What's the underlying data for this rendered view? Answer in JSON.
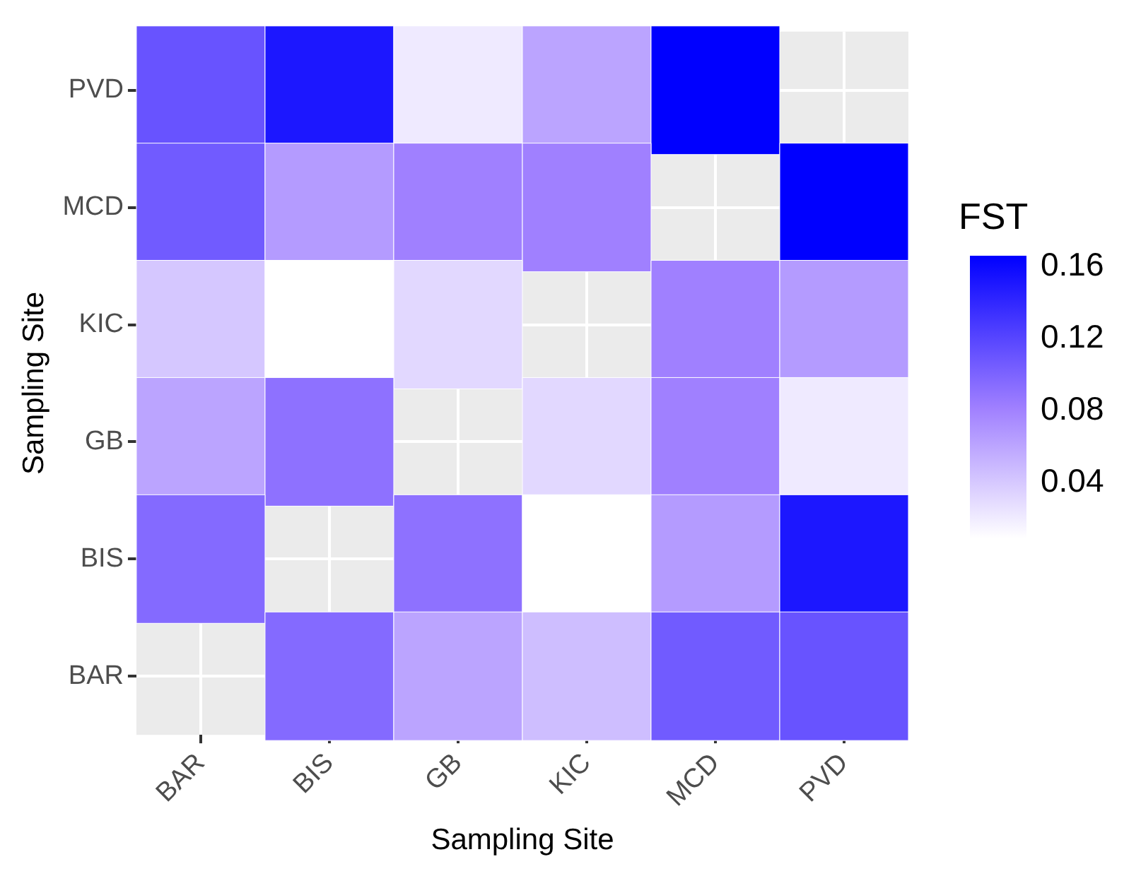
{
  "chart_data": {
    "type": "heatmap",
    "xlabel": "Sampling Site",
    "ylabel": "Sampling Site",
    "clabel": "FST",
    "categories": [
      "BAR",
      "BIS",
      "GB",
      "KIC",
      "MCD",
      "PVD"
    ],
    "y_categories": [
      "PVD",
      "MCD",
      "KIC",
      "GB",
      "BIS",
      "BAR"
    ],
    "cells": [
      [
        0.11,
        0.15,
        0.02,
        0.06,
        0.165,
        null
      ],
      [
        0.105,
        0.065,
        0.08,
        0.08,
        null,
        0.165
      ],
      [
        0.04,
        0.008,
        0.03,
        null,
        0.08,
        0.065
      ],
      [
        0.06,
        0.09,
        null,
        0.03,
        0.08,
        0.02
      ],
      [
        0.095,
        null,
        0.09,
        0.008,
        0.065,
        0.15
      ],
      [
        null,
        0.095,
        0.06,
        0.045,
        0.105,
        0.11
      ]
    ],
    "clim": [
      0.008,
      0.165
    ],
    "cticks": [
      0.04,
      0.08,
      0.12,
      0.16
    ],
    "grid": true
  }
}
